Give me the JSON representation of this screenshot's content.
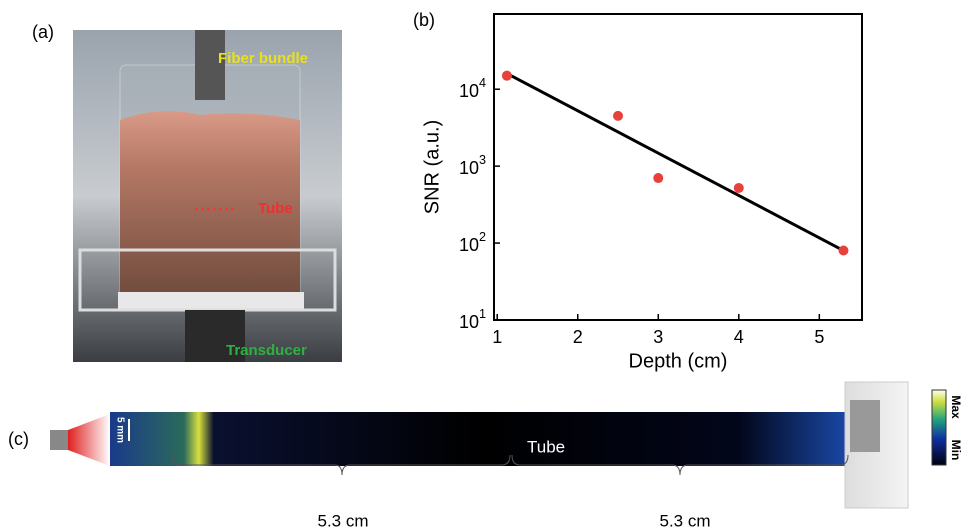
{
  "panels": {
    "a": {
      "label": "(a)",
      "fiber_bundle": "Fiber bundle",
      "tube": "Tube",
      "transducer": "Transducer"
    },
    "b": {
      "label": "(b)"
    },
    "c": {
      "label": "(c)",
      "scale_bar": "5 mm",
      "tube": "Tube",
      "lengths": [
        "5.3 cm",
        "5.3 cm"
      ],
      "colorbar_max": "Max",
      "colorbar_min": "Min"
    }
  },
  "chart_data": {
    "type": "scatter",
    "x_label": "Depth (cm)",
    "y_label": "SNR (a.u.)",
    "log_y": true,
    "xlim": [
      0.96,
      5.53
    ],
    "xticks": [
      1,
      2,
      3,
      4,
      5
    ],
    "ylim": [
      10,
      95000
    ],
    "yticks": [
      {
        "value": 10,
        "label": "10^1"
      },
      {
        "value": 100,
        "label": "10^2"
      },
      {
        "value": 1000,
        "label": "10^3"
      },
      {
        "value": 10000,
        "label": "10^4"
      }
    ],
    "series": [
      {
        "type": "scatter",
        "color": "#e8403a",
        "x": [
          1.12,
          2.5,
          3.0,
          4.0,
          5.3
        ],
        "values": [
          15000,
          4500,
          700,
          520,
          80
        ]
      },
      {
        "type": "line",
        "color": "#000000",
        "x": [
          1.12,
          5.3
        ],
        "values": [
          16000,
          80
        ]
      }
    ]
  }
}
